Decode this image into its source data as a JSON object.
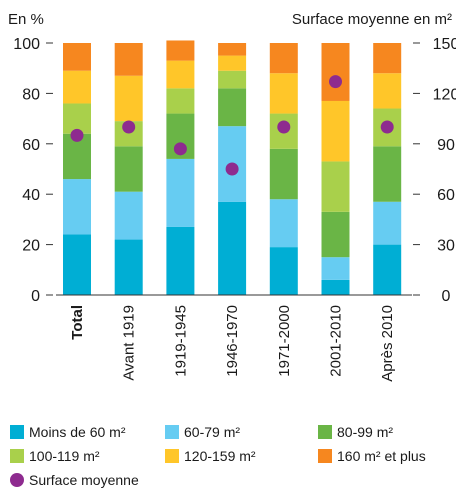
{
  "chart_data": {
    "type": "bar",
    "stacked": true,
    "left_axis_unit": "En %",
    "right_axis_unit": "Surface moyenne en m²",
    "ylim_left": [
      0,
      100
    ],
    "ylim_right": [
      0,
      150
    ],
    "yticks_left": [
      0,
      20,
      40,
      60,
      80,
      100
    ],
    "yticks_right": [
      0,
      30,
      60,
      90,
      120,
      150
    ],
    "categories": [
      "Total",
      "Avant 1919",
      "1919-1945",
      "1946-1970",
      "1971-2000",
      "2001-2010",
      "Après 2010"
    ],
    "series": [
      {
        "name": "Moins de 60 m²",
        "color": "#00aed4",
        "values": [
          24,
          22,
          27,
          37,
          19,
          6,
          20
        ]
      },
      {
        "name": "60-79 m²",
        "color": "#66ccf2",
        "values": [
          22,
          19,
          27,
          30,
          19,
          9,
          17
        ]
      },
      {
        "name": "80-99 m²",
        "color": "#6ab546",
        "values": [
          18,
          18,
          18,
          15,
          20,
          18,
          22
        ]
      },
      {
        "name": "100-119 m²",
        "color": "#a9d04b",
        "values": [
          12,
          10,
          10,
          7,
          14,
          20,
          15
        ]
      },
      {
        "name": "120-159 m²",
        "color": "#ffc629",
        "values": [
          13,
          18,
          11,
          6,
          16,
          24,
          14
        ]
      },
      {
        "name": "160 m² et plus",
        "color": "#f6871f",
        "values": [
          11,
          13,
          8,
          5,
          12,
          23,
          12
        ]
      }
    ],
    "line_series": {
      "name": "Surface moyenne",
      "color": "#8e2b8f",
      "axis": "right",
      "values": [
        95,
        100,
        87,
        75,
        100,
        127,
        100
      ]
    },
    "grid": false,
    "legend_position": "bottom"
  }
}
